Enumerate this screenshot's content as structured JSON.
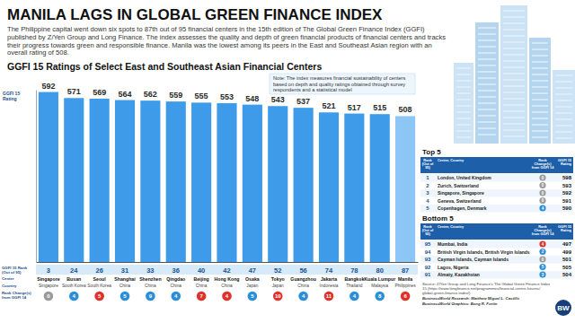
{
  "header": {
    "title": "MANILA LAGS IN GLOBAL GREEN FINANCE INDEX",
    "subtitle": "The Philippine capital went down six spots to 87th out of 95 financial centers in the 15th edition of The Global Green Finance Index (GGFI) published by Z/Yen Group and Long Finance. The index assesses the quality and depth of green financial products of financial centers and tracks their progress towards green and responsible finance. Manila was the lowest among its peers in the East and Southeast Asian region with an overall rating of 508."
  },
  "chart_data": {
    "type": "bar",
    "title": "GGFI 15 Ratings of Select East and Southeast Asian Financial Centers",
    "note": "Note: The index measures financial sustainability of centers based on depth and quality ratings obtained through survey respondents and a statistical model",
    "y_label": "GGFI 15 Rating",
    "categories": [
      "Singapore",
      "Busan",
      "Seoul",
      "Shanghai",
      "Shenzhen",
      "Qingdao",
      "Beijing",
      "Hong Kong",
      "Osaka",
      "Tokyo",
      "Guangzhou",
      "Jakarta",
      "Bangkok",
      "Kuala Lumpur",
      "Manila"
    ],
    "values": [
      592,
      571,
      569,
      564,
      562,
      559,
      555,
      553,
      548,
      543,
      537,
      521,
      517,
      515,
      508
    ],
    "colors": [
      "#3d9be9",
      "#3d9be9",
      "#3d9be9",
      "#3d9be9",
      "#3d9be9",
      "#3d9be9",
      "#3d9be9",
      "#3d9be9",
      "#3d9be9",
      "#3d9be9",
      "#3d9be9",
      "#3d9be9",
      "#3d9be9",
      "#3d9be9",
      "#8cc6f4"
    ],
    "data_labels": true,
    "ylim": [
      0,
      600
    ],
    "yticks": [],
    "tick_labels": "x",
    "row_labels": [
      "GGFI 15 Rank (Out of 95)",
      "Center",
      "Country",
      "Rank Change(s) from GGFI 14"
    ],
    "ranks": [
      3,
      24,
      26,
      31,
      33,
      36,
      40,
      42,
      47,
      52,
      56,
      74,
      78,
      80,
      87
    ],
    "countries": [
      "Singapore",
      "South Korea",
      "South Korea",
      "China",
      "China",
      "China",
      "China",
      "China",
      "Japan",
      "Japan",
      "China",
      "Indonesia",
      "Thailand",
      "Malaysia",
      "Philippines"
    ],
    "rank_changes": [
      0,
      4,
      -5,
      5,
      9,
      4,
      -7,
      -4,
      5,
      -10,
      4,
      -11,
      4,
      8,
      -6
    ],
    "rank_change_labels": [
      "0",
      "4",
      "5",
      "5",
      "9",
      "4",
      "7",
      "4",
      "5",
      "10",
      "4",
      "11",
      "4",
      "8",
      "6"
    ]
  },
  "top5": {
    "title": "Top 5",
    "columns": [
      "Rank (Out of 95)",
      "Center, Country",
      "Rank Change(s) from GGFI 14",
      "GGFI 15 Rating"
    ],
    "rows": [
      {
        "rank": 1,
        "center": "London, United Kingdom",
        "rank_change": 0,
        "rank_change_label": "0",
        "rating": 598
      },
      {
        "rank": 2,
        "center": "Zurich, Switzerland",
        "rank_change": 0,
        "rank_change_label": "0",
        "rating": 593
      },
      {
        "rank": 3,
        "center": "Singapore, Singapore",
        "rank_change": 0,
        "rank_change_label": "0",
        "rating": 592
      },
      {
        "rank": 4,
        "center": "Geneva, Switzerland",
        "rank_change": 0,
        "rank_change_label": "0",
        "rating": 591
      },
      {
        "rank": 5,
        "center": "Copenhagen, Denmark",
        "rank_change": 4,
        "rank_change_label": "4",
        "rating": 590
      }
    ]
  },
  "bottom5": {
    "title": "Bottom 5",
    "columns": [
      "Rank (Out of 95)",
      "Center, Country",
      "Rank Change(s) from GGFI 14",
      "GGFI 15 Rating"
    ],
    "rows": [
      {
        "rank": 95,
        "center": "Mumbai, India",
        "rank_change": -4,
        "rank_change_label": "4",
        "rating": 497
      },
      {
        "rank": 94,
        "center": "British Virgin Islands, British Virgin Islands",
        "rank_change": 2,
        "rank_change_label": "2",
        "rating": 499
      },
      {
        "rank": 93,
        "center": "Cayman Islands, Cayman Islands",
        "rank_change": 0,
        "rank_change_label": "0",
        "rating": 501
      },
      {
        "rank": 92,
        "center": "Lagos, Nigeria",
        "rank_change": 5,
        "rank_change_label": "5",
        "rating": 505
      },
      {
        "rank": 91,
        "center": "Almaty, Kazakhstan",
        "rank_change": 3,
        "rank_change_label": "3",
        "rating": 504
      }
    ]
  },
  "footer": {
    "source": "Source: Z/Yen Group and Long Finance's The Global Green Finance Index 15 (https://www.longfinance.net/programmes/financial-centre-futures/global-green-finance-index/)",
    "research": "BusinessWorld Research: Matthew Miguel L. Castillo",
    "graphics": "BusinessWorld Graphics: Bong R. Fortin",
    "logo": "BW"
  }
}
